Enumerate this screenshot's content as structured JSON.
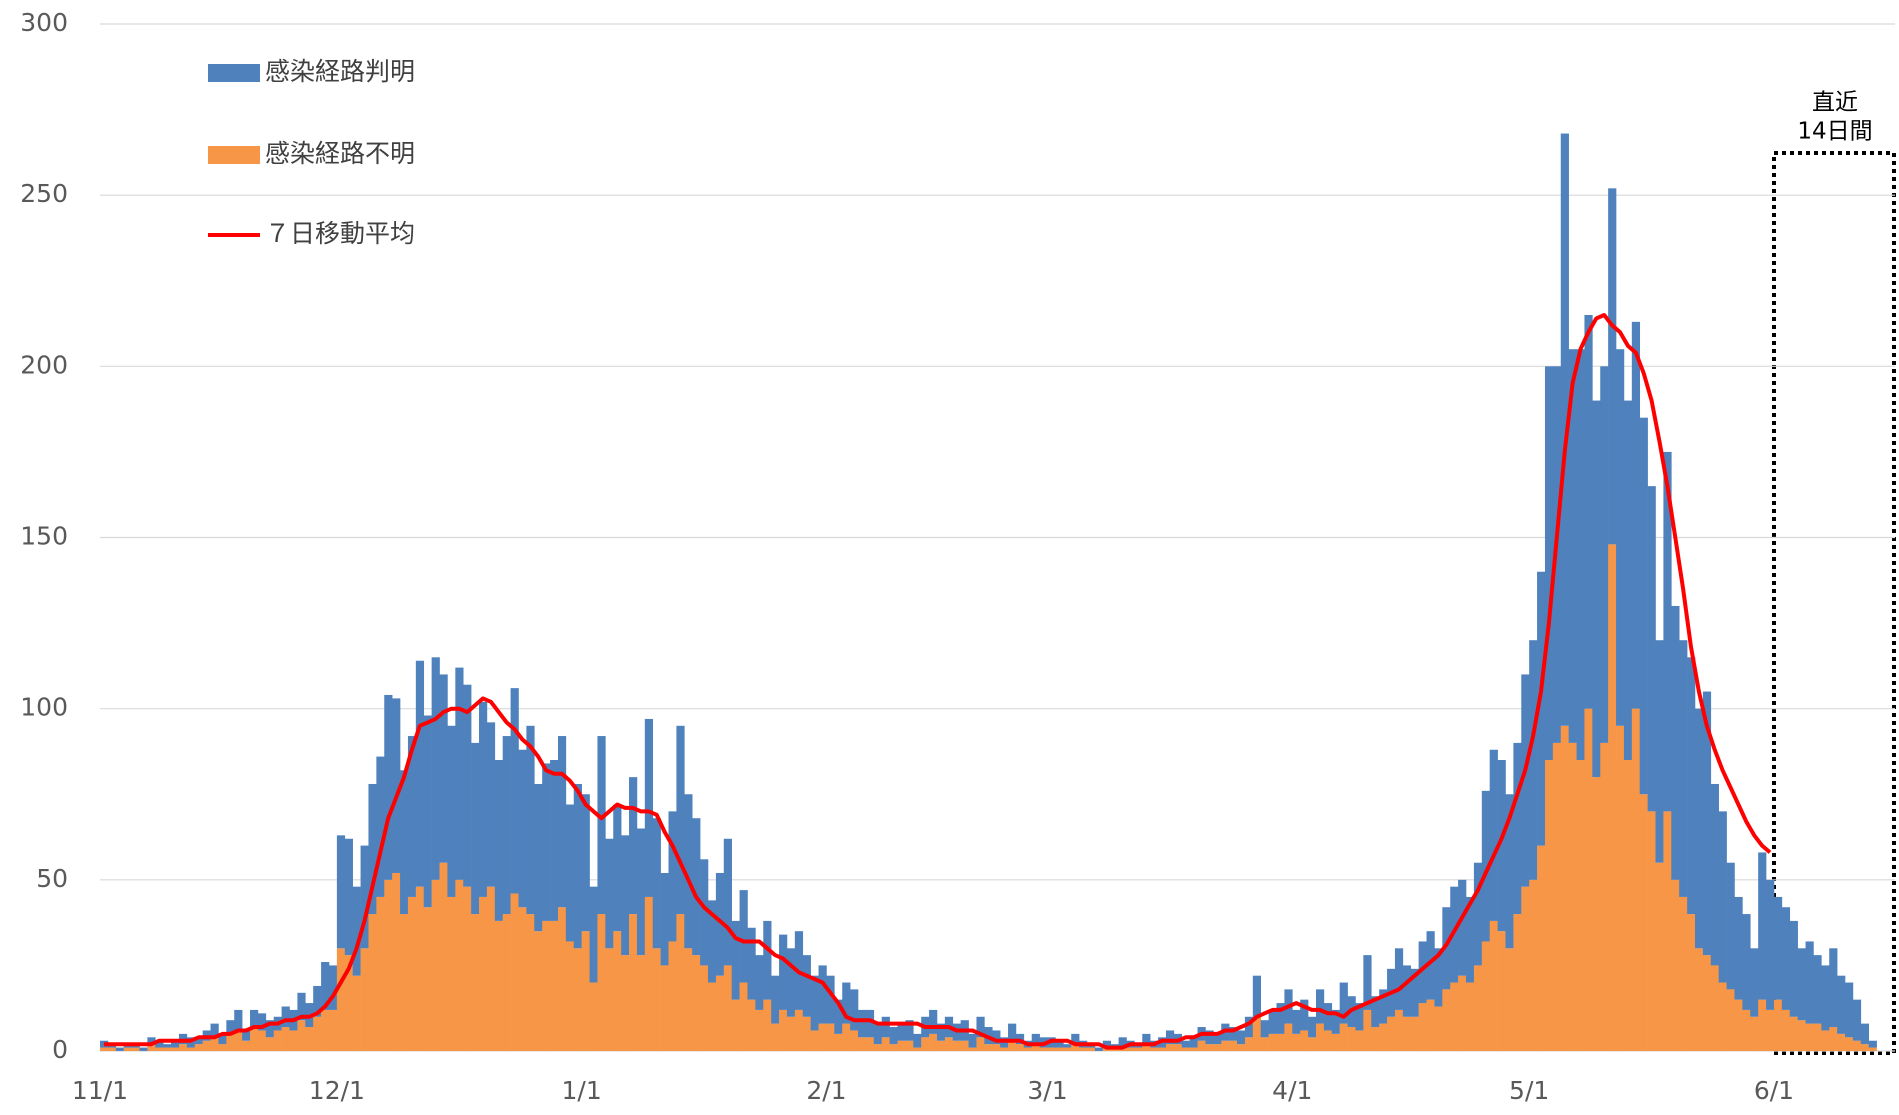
{
  "chart_data": {
    "type": "bar",
    "stacked": true,
    "grid": true,
    "legend": "top-left",
    "ylim": [
      0,
      300
    ],
    "yticks": [
      0,
      50,
      100,
      150,
      200,
      250,
      300
    ],
    "annotation": [
      "直近",
      "14日間"
    ],
    "categories": [
      "11/1",
      null,
      null,
      null,
      null,
      null,
      null,
      null,
      null,
      null,
      null,
      null,
      null,
      null,
      null,
      null,
      null,
      null,
      null,
      null,
      null,
      null,
      null,
      null,
      null,
      null,
      null,
      null,
      null,
      null,
      "12/1",
      null,
      null,
      null,
      null,
      null,
      null,
      null,
      null,
      null,
      null,
      null,
      null,
      null,
      null,
      null,
      null,
      null,
      null,
      null,
      null,
      null,
      null,
      null,
      null,
      null,
      null,
      null,
      null,
      null,
      null,
      "1/1",
      null,
      null,
      null,
      null,
      null,
      null,
      null,
      null,
      null,
      null,
      null,
      null,
      null,
      null,
      null,
      null,
      null,
      null,
      null,
      null,
      null,
      null,
      null,
      null,
      null,
      null,
      null,
      null,
      null,
      null,
      "2/1",
      null,
      null,
      null,
      null,
      null,
      null,
      null,
      null,
      null,
      null,
      null,
      null,
      null,
      null,
      null,
      null,
      null,
      null,
      null,
      null,
      null,
      null,
      null,
      null,
      null,
      null,
      null,
      "3/1",
      null,
      null,
      null,
      null,
      null,
      null,
      null,
      null,
      null,
      null,
      null,
      null,
      null,
      null,
      null,
      null,
      null,
      null,
      null,
      null,
      null,
      null,
      null,
      null,
      null,
      null,
      null,
      null,
      null,
      null,
      "4/1",
      null,
      null,
      null,
      null,
      null,
      null,
      null,
      null,
      null,
      null,
      null,
      null,
      null,
      null,
      null,
      null,
      null,
      null,
      null,
      null,
      null,
      null,
      null,
      null,
      null,
      null,
      null,
      null,
      null,
      "5/1",
      null,
      null,
      null,
      null,
      null,
      null,
      null,
      null,
      null,
      null,
      null,
      null,
      null,
      null,
      null,
      null,
      null,
      null,
      null,
      null,
      null,
      null,
      null,
      null,
      null,
      null,
      null,
      null,
      null,
      null,
      "6/1",
      null,
      null,
      null,
      null,
      null,
      null,
      null,
      null,
      null,
      null,
      null,
      null
    ],
    "series": [
      {
        "name": "感染経路判明",
        "type": "bar",
        "color": "#4f81bd",
        "values": [
          2,
          1,
          1,
          1,
          1,
          1,
          2,
          2,
          1,
          2,
          3,
          3,
          2,
          3,
          4,
          3,
          4,
          6,
          3,
          5,
          5,
          5,
          4,
          6,
          6,
          8,
          7,
          9,
          14,
          13,
          33,
          34,
          26,
          30,
          38,
          41,
          54,
          51,
          42,
          47,
          66,
          56,
          65,
          55,
          50,
          62,
          59,
          50,
          57,
          48,
          47,
          52,
          60,
          46,
          55,
          43,
          46,
          47,
          50,
          40,
          48,
          40,
          28,
          52,
          32,
          37,
          35,
          40,
          37,
          52,
          38,
          27,
          38,
          55,
          45,
          40,
          31,
          24,
          30,
          37,
          23,
          27,
          21,
          16,
          23,
          14,
          22,
          20,
          23,
          18,
          16,
          17,
          14,
          10,
          12,
          12,
          8,
          8,
          6,
          6,
          5,
          5,
          6,
          4,
          6,
          7,
          5,
          6,
          5,
          6,
          4,
          6,
          5,
          4,
          3,
          5,
          3,
          2,
          3,
          3,
          3,
          2,
          1,
          3,
          2,
          1,
          1,
          2,
          1,
          3,
          2,
          1,
          3,
          2,
          3,
          4,
          3,
          2,
          3,
          4,
          4,
          3,
          5,
          4,
          4,
          6,
          12,
          5,
          7,
          9,
          10,
          7,
          9,
          6,
          10,
          8,
          7,
          12,
          9,
          8,
          16,
          9,
          10,
          14,
          18,
          15,
          14,
          18,
          20,
          17,
          24,
          28,
          28,
          25,
          30,
          44,
          50,
          50,
          45,
          50,
          62,
          70,
          80,
          115,
          110,
          173,
          115,
          120,
          115,
          110,
          110,
          104,
          110,
          105,
          113,
          110,
          95,
          65,
          105,
          80,
          75,
          75,
          70,
          77,
          53,
          50,
          37,
          30,
          28,
          20,
          43,
          38,
          30,
          30,
          28,
          21,
          24,
          20,
          19,
          23,
          17,
          16,
          12,
          6,
          2
        ]
      },
      {
        "name": "感染経路不明",
        "type": "bar",
        "color": "#f79646",
        "values": [
          1,
          1,
          0,
          1,
          1,
          0,
          2,
          1,
          1,
          1,
          2,
          1,
          2,
          3,
          4,
          2,
          5,
          6,
          3,
          7,
          6,
          4,
          6,
          7,
          6,
          9,
          7,
          10,
          12,
          12,
          30,
          28,
          22,
          30,
          40,
          45,
          50,
          52,
          40,
          45,
          48,
          42,
          50,
          55,
          45,
          50,
          48,
          40,
          45,
          48,
          38,
          40,
          46,
          42,
          40,
          35,
          38,
          38,
          42,
          32,
          30,
          35,
          20,
          40,
          30,
          35,
          28,
          40,
          28,
          45,
          30,
          25,
          32,
          40,
          30,
          28,
          25,
          20,
          22,
          25,
          15,
          20,
          15,
          12,
          15,
          8,
          12,
          10,
          12,
          10,
          6,
          8,
          8,
          5,
          8,
          6,
          4,
          4,
          2,
          4,
          2,
          3,
          3,
          1,
          4,
          5,
          3,
          4,
          3,
          3,
          1,
          4,
          2,
          2,
          1,
          3,
          2,
          1,
          2,
          1,
          1,
          1,
          1,
          2,
          1,
          1,
          0,
          1,
          1,
          1,
          1,
          1,
          2,
          1,
          1,
          2,
          2,
          1,
          1,
          3,
          2,
          2,
          3,
          3,
          2,
          4,
          10,
          4,
          5,
          5,
          8,
          5,
          6,
          4,
          8,
          6,
          5,
          8,
          7,
          6,
          12,
          7,
          8,
          10,
          12,
          10,
          10,
          14,
          15,
          13,
          18,
          20,
          22,
          20,
          25,
          32,
          38,
          35,
          30,
          40,
          48,
          50,
          60,
          85,
          90,
          95,
          90,
          85,
          100,
          80,
          90,
          148,
          95,
          85,
          100,
          75,
          70,
          55,
          70,
          50,
          45,
          40,
          30,
          28,
          25,
          20,
          18,
          15,
          12,
          10,
          15,
          12,
          15,
          12,
          10,
          9,
          8,
          8,
          6,
          7,
          5,
          4,
          3,
          2,
          1
        ]
      },
      {
        "name": "７日移動平均",
        "type": "line",
        "color": "#ff0000",
        "values": [
          2,
          2,
          2,
          2,
          2,
          2,
          2,
          3,
          3,
          3,
          3,
          3,
          4,
          4,
          4,
          5,
          5,
          6,
          6,
          7,
          7,
          8,
          8,
          9,
          9,
          10,
          10,
          11,
          13,
          16,
          20,
          24,
          30,
          38,
          48,
          58,
          68,
          74,
          80,
          88,
          95,
          96,
          97,
          99,
          100,
          100,
          99,
          101,
          103,
          102,
          99,
          96,
          94,
          91,
          89,
          86,
          82,
          81,
          81,
          79,
          76,
          72,
          70,
          68,
          70,
          72,
          71,
          71,
          70,
          70,
          69,
          64,
          60,
          55,
          50,
          45,
          42,
          40,
          38,
          36,
          33,
          32,
          32,
          32,
          30,
          28,
          27,
          25,
          23,
          22,
          21,
          20,
          17,
          14,
          10,
          9,
          9,
          9,
          8,
          8,
          8,
          8,
          8,
          8,
          7,
          7,
          7,
          7,
          6,
          6,
          6,
          5,
          4,
          3,
          3,
          3,
          3,
          2,
          2,
          2,
          3,
          3,
          3,
          2,
          2,
          2,
          2,
          1,
          1,
          1,
          2,
          2,
          2,
          2,
          3,
          3,
          3,
          4,
          4,
          5,
          5,
          5,
          6,
          6,
          7,
          8,
          10,
          11,
          12,
          12,
          13,
          14,
          13,
          12,
          12,
          11,
          11,
          10,
          12,
          13,
          14,
          15,
          16,
          17,
          18,
          20,
          22,
          24,
          26,
          28,
          31,
          35,
          39,
          43,
          47,
          52,
          57,
          62,
          68,
          75,
          82,
          92,
          105,
          125,
          150,
          175,
          195,
          205,
          210,
          214,
          215,
          212,
          210,
          206,
          204,
          198,
          190,
          178,
          165,
          150,
          135,
          118,
          105,
          95,
          88,
          82,
          77,
          72,
          67,
          63,
          60,
          58,
          null,
          null,
          null,
          null,
          null,
          null,
          null,
          null,
          null,
          null,
          null,
          null,
          null
        ]
      }
    ]
  }
}
